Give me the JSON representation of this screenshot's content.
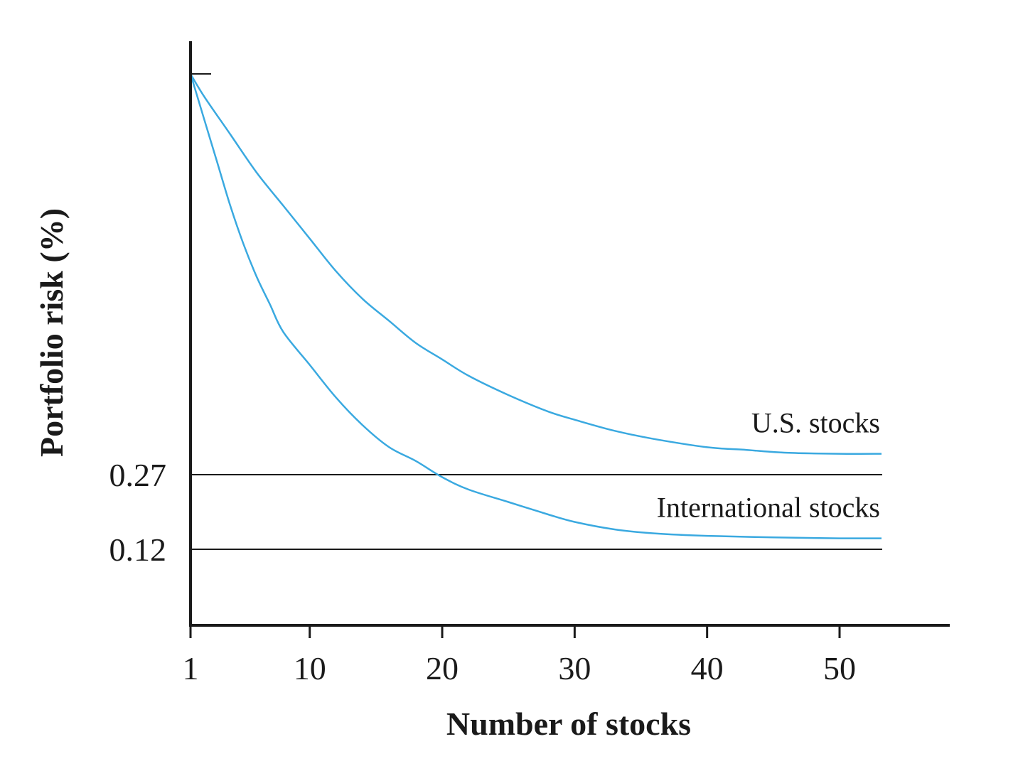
{
  "chart_data": {
    "type": "line",
    "title": "",
    "xlabel": "Number of stocks",
    "ylabel": "Portfolio risk (%)",
    "x_ticks": [
      "1",
      "10",
      "20",
      "30",
      "40",
      "50"
    ],
    "x_tick_values": [
      1,
      10,
      20,
      30,
      40,
      50
    ],
    "y_ticks": [
      "0.27",
      "0.12"
    ],
    "y_tick_values": [
      0.27,
      0.12
    ],
    "xlim": [
      1,
      50
    ],
    "ylim": [
      0,
      1
    ],
    "grid": false,
    "reference_lines": [
      0.27,
      0.12
    ],
    "series": [
      {
        "name": "U.S. stocks",
        "color": "#3aa9e0",
        "x": [
          1,
          2,
          4,
          6,
          8,
          10,
          12,
          14,
          16,
          18,
          20,
          22,
          25,
          28,
          30,
          33,
          36,
          40,
          43,
          46,
          50,
          54
        ],
        "y": [
          1.0,
          0.96,
          0.89,
          0.82,
          0.76,
          0.7,
          0.64,
          0.59,
          0.55,
          0.51,
          0.48,
          0.45,
          0.415,
          0.385,
          0.37,
          0.35,
          0.335,
          0.32,
          0.315,
          0.31,
          0.308,
          0.308
        ]
      },
      {
        "name": "International stocks",
        "color": "#3aa9e0",
        "x": [
          1,
          2,
          3,
          4,
          5,
          6,
          7,
          8,
          10,
          12,
          14,
          16,
          18,
          20,
          22,
          25,
          28,
          30,
          33,
          36,
          40,
          45,
          50,
          54
        ],
        "y": [
          1.0,
          0.92,
          0.84,
          0.76,
          0.69,
          0.63,
          0.58,
          0.53,
          0.47,
          0.41,
          0.36,
          0.32,
          0.295,
          0.265,
          0.24,
          0.215,
          0.19,
          0.175,
          0.16,
          0.152,
          0.147,
          0.144,
          0.142,
          0.142
        ]
      }
    ]
  }
}
